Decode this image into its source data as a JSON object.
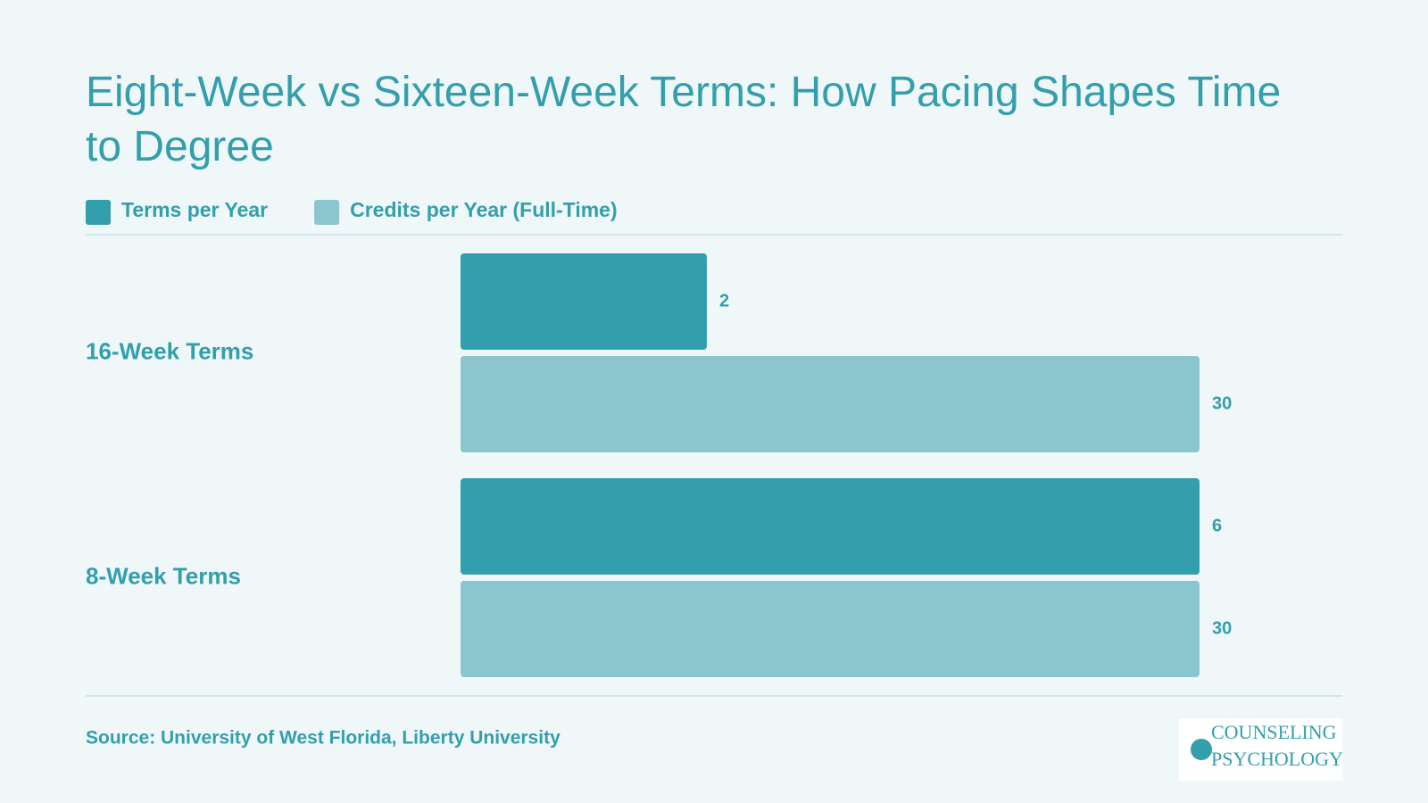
{
  "chart_data": {
    "type": "bar",
    "orientation": "horizontal",
    "title": "Eight-Week vs Sixteen-Week Terms: How Pacing Shapes Time to Degree",
    "categories": [
      "16-Week Terms",
      "8-Week Terms"
    ],
    "series": [
      {
        "name": "Terms per Year",
        "color": "#339fac",
        "values": [
          2,
          6
        ]
      },
      {
        "name": "Credits per Year (Full-Time)",
        "color": "#8bc6cf",
        "values": [
          30,
          30
        ]
      }
    ],
    "source": "Source: University of West Florida, Liberty University"
  },
  "logo": {
    "line1": "COUNSELING",
    "line2": "PSYCHOLOGY"
  }
}
